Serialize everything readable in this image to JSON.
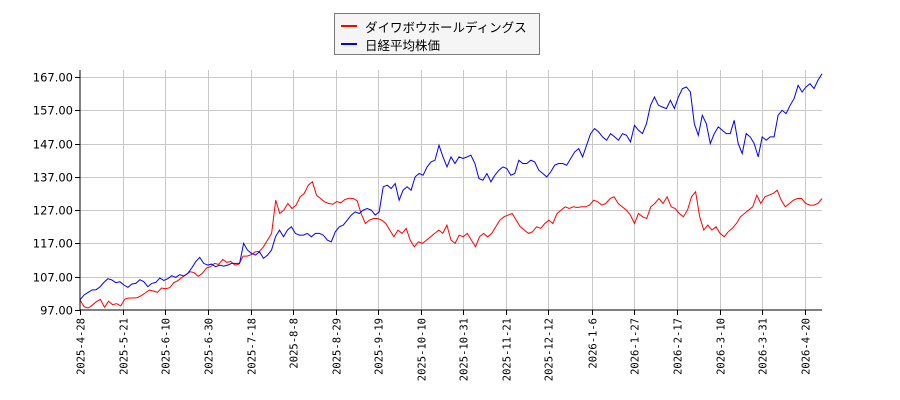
{
  "chart_data": {
    "type": "line",
    "title": "",
    "xlabel": "",
    "ylabel": "",
    "ylim": [
      97,
      169
    ],
    "grid": true,
    "legend_position": "top-center",
    "y_ticks": [
      "97.00",
      "107.00",
      "117.00",
      "127.00",
      "137.00",
      "147.00",
      "157.00",
      "167.00"
    ],
    "x_ticks": [
      "2025-4-28",
      "2025-5-21",
      "2025-6-10",
      "2025-6-30",
      "2025-7-18",
      "2025-8-8",
      "2025-8-29",
      "2025-9-19",
      "2025-10-10",
      "2025-10-31",
      "2025-11-21",
      "2025-12-12",
      "2026-1-6",
      "2026-1-27",
      "2026-2-17",
      "2026-3-10",
      "2026-3-31",
      "2026-4-20"
    ],
    "series": [
      {
        "name": "ダイワボウホールディングス",
        "color": "#ff0000",
        "values": [
          100.0,
          98.0,
          97.6,
          98.4,
          99.5,
          100.2,
          97.8,
          99.6,
          98.6,
          98.9,
          98.2,
          100.3,
          100.6,
          100.6,
          100.7,
          101.3,
          102.1,
          103.0,
          102.7,
          102.3,
          103.6,
          103.4,
          103.7,
          105.2,
          105.8,
          106.8,
          107.6,
          108.5,
          108.2,
          107.1,
          108.0,
          109.6,
          110.0,
          111.0,
          110.7,
          112.2,
          111.3,
          111.6,
          110.5,
          110.8,
          113.2,
          113.2,
          113.6,
          114.5,
          114.6,
          116.0,
          118.0,
          120.0,
          130.0,
          126.0,
          127.0,
          129.0,
          127.5,
          128.5,
          131.0,
          132.0,
          134.5,
          135.5,
          131.5,
          130.5,
          129.5,
          129.0,
          128.8,
          129.6,
          129.2,
          130.2,
          130.6,
          130.5,
          129.8,
          125.8,
          123.0,
          124.0,
          124.5,
          124.5,
          124.0,
          123.0,
          121.0,
          119.0,
          121.0,
          120.0,
          121.5,
          118.0,
          116.0,
          117.5,
          117.0,
          118.0,
          119.0,
          120.0,
          121.0,
          120.0,
          122.5,
          118.0,
          117.0,
          119.5,
          119.0,
          120.0,
          118.0,
          116.0,
          119.0,
          120.0,
          119.0,
          120.0,
          122.0,
          124.0,
          125.0,
          125.5,
          126.0,
          124.0,
          122.0,
          121.0,
          120.0,
          120.5,
          122.0,
          121.5,
          123.0,
          124.0,
          123.0,
          126.0,
          127.0,
          128.0,
          127.5,
          128.0,
          127.8,
          128.0,
          128.0,
          128.5,
          130.0,
          129.5,
          128.5,
          129.0,
          130.5,
          131.0,
          129.0,
          128.0,
          127.0,
          125.5,
          123.0,
          126.0,
          125.0,
          124.5,
          128.0,
          129.0,
          130.5,
          129.0,
          131.0,
          128.0,
          127.5,
          126.0,
          125.0,
          127.0,
          131.0,
          132.5,
          125.0,
          121.0,
          122.5,
          121.0,
          122.0,
          120.0,
          119.0,
          120.5,
          121.5,
          123.0,
          125.0,
          126.0,
          127.0,
          128.0,
          131.5,
          129.0,
          131.0,
          131.5,
          132.0,
          133.0,
          130.0,
          128.0,
          129.0,
          130.0,
          130.5,
          130.5,
          129.0,
          128.5,
          128.5,
          129.0,
          130.5
        ]
      },
      {
        "name": "日経平均株価",
        "color": "#0000ff",
        "values": [
          100.0,
          101.5,
          102.3,
          103.0,
          103.1,
          103.9,
          105.3,
          106.4,
          106.0,
          105.2,
          105.5,
          104.5,
          103.8,
          104.8,
          105.0,
          106.1,
          105.5,
          104.0,
          105.0,
          105.3,
          106.6,
          105.9,
          106.4,
          107.3,
          106.8,
          107.6,
          107.2,
          108.0,
          109.6,
          111.5,
          112.8,
          111.0,
          110.5,
          110.8,
          110.0,
          110.5,
          110.2,
          110.5,
          111.0,
          111.0,
          111.0,
          117.0,
          115.0,
          114.0,
          113.5,
          114.5,
          112.5,
          113.5,
          115.0,
          119.0,
          121.0,
          119.0,
          121.0,
          122.0,
          120.0,
          119.5,
          119.5,
          120.0,
          119.0,
          120.0,
          120.0,
          119.5,
          118.0,
          117.5,
          120.5,
          122.0,
          122.5,
          124.0,
          125.5,
          126.5,
          126.0,
          127.0,
          127.5,
          127.0,
          125.5,
          126.5,
          134.0,
          134.5,
          133.5,
          135.0,
          130.0,
          133.0,
          134.0,
          133.0,
          137.0,
          138.0,
          137.5,
          140.0,
          141.5,
          142.0,
          146.5,
          143.0,
          140.0,
          143.0,
          141.0,
          143.0,
          142.5,
          143.0,
          143.5,
          141.0,
          136.5,
          136.0,
          138.0,
          135.5,
          137.5,
          139.0,
          140.0,
          139.5,
          137.5,
          138.0,
          142.0,
          141.0,
          141.0,
          142.0,
          141.5,
          139.0,
          138.0,
          137.0,
          138.5,
          140.5,
          141.0,
          141.0,
          140.5,
          142.5,
          144.5,
          145.5,
          143.0,
          146.5,
          150.0,
          151.5,
          150.5,
          149.0,
          148.0,
          150.0,
          149.0,
          148.0,
          150.0,
          149.5,
          147.5,
          152.5,
          151.0,
          150.0,
          153.0,
          158.5,
          161.0,
          158.5,
          158.0,
          157.5,
          160.0,
          157.5,
          161.0,
          163.5,
          164.0,
          162.5,
          153.0,
          149.5,
          155.5,
          153.0,
          147.0,
          150.0,
          152.0,
          151.0,
          150.0,
          150.0,
          154.0,
          147.0,
          144.0,
          150.0,
          149.0,
          147.0,
          143.0,
          149.0,
          148.0,
          149.0,
          149.0,
          155.5,
          157.0,
          156.0,
          158.5,
          160.5,
          164.5,
          162.5,
          164.0,
          165.0,
          163.5,
          166.0,
          168.0
        ]
      }
    ]
  },
  "legend": {
    "items": [
      {
        "label": "ダイワボウホールディングス",
        "color": "#ff0000"
      },
      {
        "label": "日経平均株価",
        "color": "#0000ff"
      }
    ]
  }
}
